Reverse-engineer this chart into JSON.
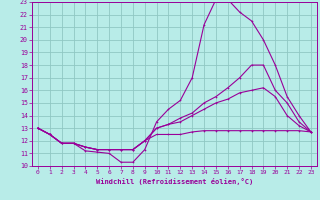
{
  "xlabel": "Windchill (Refroidissement éolien,°C)",
  "xlim": [
    -0.5,
    23.5
  ],
  "ylim": [
    10,
    23
  ],
  "xticks": [
    0,
    1,
    2,
    3,
    4,
    5,
    6,
    7,
    8,
    9,
    10,
    11,
    12,
    13,
    14,
    15,
    16,
    17,
    18,
    19,
    20,
    21,
    22,
    23
  ],
  "yticks": [
    10,
    11,
    12,
    13,
    14,
    15,
    16,
    17,
    18,
    19,
    20,
    21,
    22,
    23
  ],
  "bg_color": "#b8ece8",
  "grid_color": "#90c8c4",
  "line_color": "#990099",
  "curves": [
    {
      "x": [
        0,
        1,
        2,
        3,
        4,
        5,
        6,
        7,
        8,
        9,
        10,
        11,
        12,
        13,
        14,
        15,
        16,
        17,
        18,
        19,
        20,
        21,
        22,
        23
      ],
      "y": [
        13,
        12.5,
        11.8,
        11.8,
        11.2,
        11.1,
        11.0,
        10.3,
        10.3,
        11.3,
        13.5,
        14.5,
        15.2,
        17.0,
        21.2,
        23.2,
        23.2,
        22.2,
        21.5,
        20.0,
        18.0,
        15.5,
        14.0,
        12.7
      ]
    },
    {
      "x": [
        0,
        1,
        2,
        3,
        4,
        5,
        6,
        7,
        8,
        9,
        10,
        11,
        12,
        13,
        14,
        15,
        16,
        17,
        18,
        19,
        20,
        21,
        22,
        23
      ],
      "y": [
        13,
        12.5,
        11.8,
        11.8,
        11.5,
        11.3,
        11.3,
        11.3,
        11.3,
        12.0,
        13.0,
        13.3,
        13.5,
        14.0,
        14.5,
        15.0,
        15.3,
        15.8,
        16.0,
        16.2,
        15.5,
        14.0,
        13.2,
        12.7
      ]
    },
    {
      "x": [
        0,
        1,
        2,
        3,
        4,
        5,
        6,
        7,
        8,
        9,
        10,
        11,
        12,
        13,
        14,
        15,
        16,
        17,
        18,
        19,
        20,
        21,
        22,
        23
      ],
      "y": [
        13,
        12.5,
        11.8,
        11.8,
        11.5,
        11.3,
        11.3,
        11.3,
        11.3,
        12.0,
        12.5,
        12.5,
        12.5,
        12.7,
        12.8,
        12.8,
        12.8,
        12.8,
        12.8,
        12.8,
        12.8,
        12.8,
        12.8,
        12.7
      ]
    },
    {
      "x": [
        0,
        1,
        2,
        3,
        4,
        5,
        6,
        7,
        8,
        9,
        10,
        11,
        12,
        13,
        14,
        15,
        16,
        17,
        18,
        19,
        20,
        21,
        22,
        23
      ],
      "y": [
        13,
        12.5,
        11.8,
        11.8,
        11.5,
        11.3,
        11.3,
        11.3,
        11.3,
        12.0,
        13.0,
        13.3,
        13.8,
        14.2,
        15.0,
        15.5,
        16.2,
        17.0,
        18.0,
        18.0,
        16.0,
        15.0,
        13.5,
        12.7
      ]
    }
  ]
}
